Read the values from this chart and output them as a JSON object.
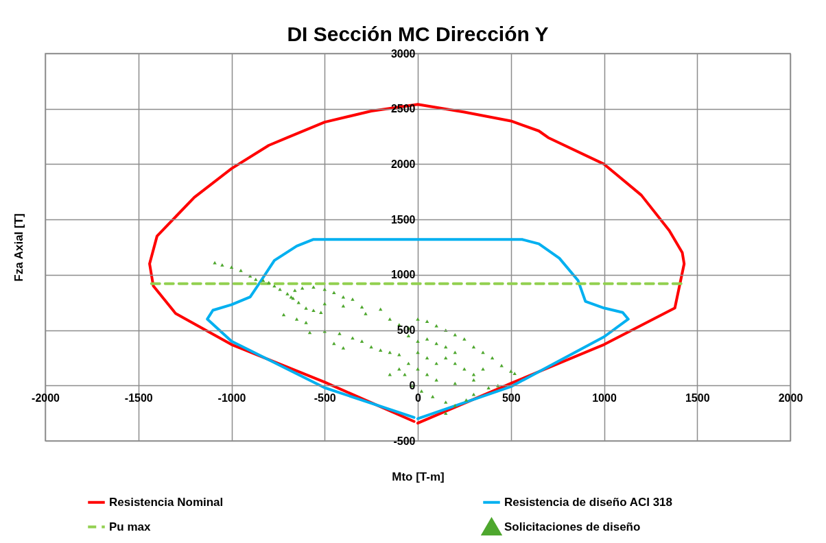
{
  "chart_data": {
    "type": "line",
    "title": "DI Sección MC Dirección Y",
    "xlabel": "Mto [T-m]",
    "ylabel": "Fza Axial [T]",
    "xlim": [
      -2000,
      2000
    ],
    "xticks": [
      -2000,
      -1500,
      -1000,
      -500,
      0,
      500,
      1000,
      1500,
      2000
    ],
    "ylim": [
      -500,
      3000
    ],
    "yticks": [
      -500,
      0,
      500,
      1000,
      1500,
      2000,
      2500,
      3000
    ],
    "grid": true,
    "legend": "bottom",
    "marker": "none",
    "series": [
      {
        "name": "Resistencia Nominal",
        "color": "#ff0000",
        "line_style": "solid",
        "x": [
          -20,
          -500,
          -1000,
          -1300,
          -1420,
          -1440,
          -1400,
          -1200,
          -1000,
          -800,
          -700,
          -500,
          -250,
          0,
          250,
          500,
          650,
          700,
          1000,
          1200,
          1350,
          1420,
          1430,
          1380,
          1000,
          500,
          0
        ],
        "values": [
          -325,
          30,
          370,
          650,
          900,
          1100,
          1350,
          1700,
          1960,
          2170,
          2240,
          2380,
          2480,
          2540,
          2470,
          2390,
          2300,
          2240,
          2000,
          1720,
          1400,
          1200,
          1100,
          700,
          370,
          20,
          -340
        ]
      },
      {
        "name": "Resistencia de diseño ACI 318",
        "color": "#00b0f0",
        "line_style": "solid",
        "x": [
          -20,
          -500,
          -1000,
          -1130,
          -1100,
          -1000,
          -900,
          -860,
          -770,
          -650,
          -560,
          -500,
          0,
          500,
          560,
          650,
          760,
          860,
          900,
          1000,
          1100,
          1130,
          1000,
          500,
          0
        ],
        "values": [
          -289,
          -20,
          400,
          600,
          680,
          730,
          800,
          900,
          1130,
          1260,
          1320,
          1320,
          1320,
          1320,
          1320,
          1280,
          1150,
          950,
          760,
          700,
          660,
          600,
          440,
          -10,
          -300
        ]
      },
      {
        "name": "Pu max",
        "color": "#92d050",
        "line_style": "dashed",
        "x": [
          -1430,
          1430
        ],
        "values": [
          920,
          920
        ]
      },
      {
        "name": "Solicitaciones de diseño",
        "type": "scatter",
        "color": "#4ea72e",
        "marker": "triangle",
        "x": [
          -1090,
          -1050,
          -1000,
          -950,
          -900,
          -870,
          -830,
          -800,
          -770,
          -740,
          -700,
          -670,
          -640,
          -600,
          -560,
          -520,
          -680,
          -660,
          -620,
          -560,
          -500,
          -450,
          -400,
          -350,
          -720,
          -650,
          -600,
          -580,
          -500,
          -420,
          -350,
          -300,
          -250,
          -200,
          -150,
          -100,
          -450,
          -400,
          -500,
          -400,
          -300,
          -200,
          -280,
          -150,
          -100,
          -50,
          0,
          50,
          100,
          150,
          200,
          250,
          300,
          350,
          400,
          450,
          500,
          520,
          -50,
          0,
          50,
          100,
          150,
          200,
          0,
          50,
          100,
          150,
          200,
          250,
          300,
          350,
          -50,
          0,
          50,
          100,
          -100,
          -150,
          -70,
          -30,
          20,
          80,
          150,
          150,
          200,
          260,
          300,
          380,
          430,
          300,
          200
        ],
        "values": [
          1110,
          1090,
          1070,
          1040,
          990,
          960,
          950,
          930,
          900,
          870,
          830,
          790,
          750,
          700,
          680,
          660,
          800,
          860,
          880,
          890,
          870,
          840,
          800,
          780,
          640,
          600,
          570,
          480,
          490,
          470,
          430,
          400,
          350,
          320,
          300,
          280,
          380,
          340,
          740,
          720,
          710,
          690,
          650,
          600,
          550,
          520,
          600,
          580,
          540,
          500,
          460,
          420,
          350,
          300,
          250,
          180,
          130,
          110,
          450,
          400,
          420,
          380,
          350,
          300,
          300,
          250,
          200,
          250,
          200,
          150,
          100,
          150,
          200,
          150,
          100,
          50,
          150,
          100,
          100,
          0,
          -50,
          -100,
          -150,
          -250,
          -180,
          -130,
          -80,
          -20,
          0,
          50,
          20
        ]
      }
    ]
  }
}
